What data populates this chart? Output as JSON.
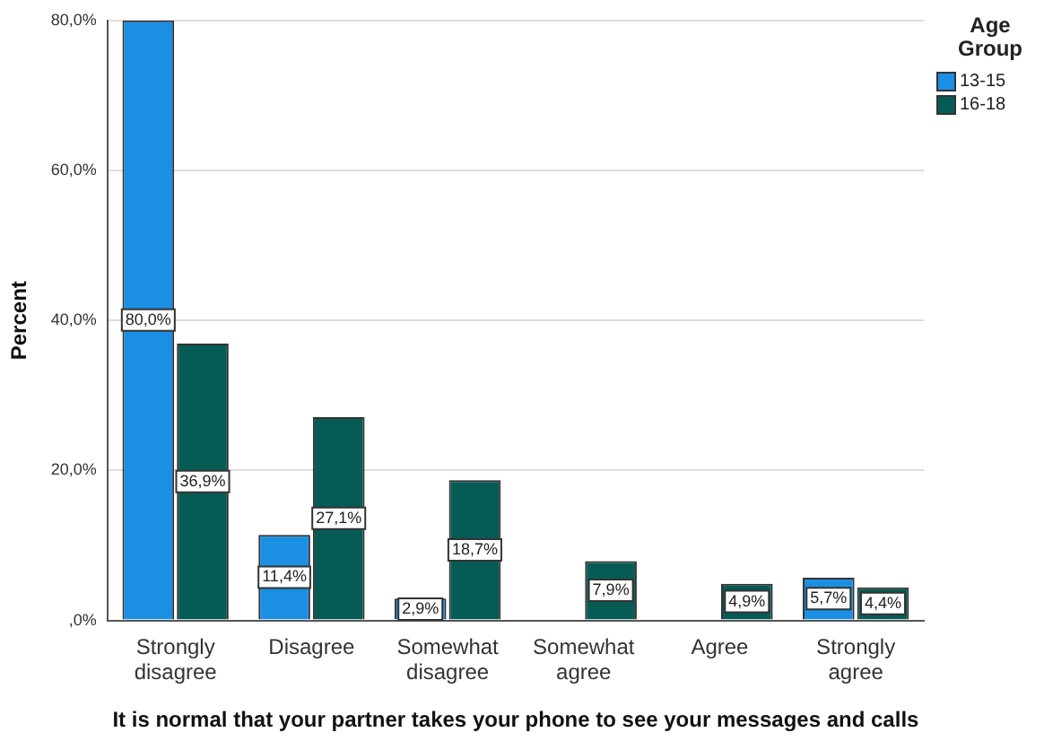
{
  "chart_data": {
    "type": "bar",
    "xlabel": "It is normal that your partner takes your phone to see your messages and calls",
    "ylabel": "Percent",
    "legend_title": "Age Group",
    "legend": "top right",
    "grid": "y",
    "categories": [
      "Strongly disagree",
      "Disagree",
      "Somewhat disagree",
      "Somewhat agree",
      "Agree",
      "Strongly agree"
    ],
    "series": [
      {
        "name": "13-15",
        "color": "#1a8fe3",
        "values": [
          80.0,
          11.4,
          2.9,
          0,
          0,
          5.7
        ],
        "value_labels": [
          "80,0%",
          "11,4%",
          "2,9%",
          null,
          null,
          "5,7%"
        ]
      },
      {
        "name": "16-18",
        "color": "#075b55",
        "values": [
          36.9,
          27.1,
          18.7,
          7.9,
          4.9,
          4.4
        ],
        "value_labels": [
          "36,9%",
          "27,1%",
          "18,7%",
          "7,9%",
          "4,9%",
          "4,4%"
        ]
      }
    ],
    "ylim": [
      0,
      80
    ],
    "yticks": [
      {
        "value": 0,
        "label": ",0%"
      },
      {
        "value": 20,
        "label": "20,0%"
      },
      {
        "value": 40,
        "label": "40,0%"
      },
      {
        "value": 60,
        "label": "60,0%"
      },
      {
        "value": 80,
        "label": "80,0%"
      }
    ]
  }
}
